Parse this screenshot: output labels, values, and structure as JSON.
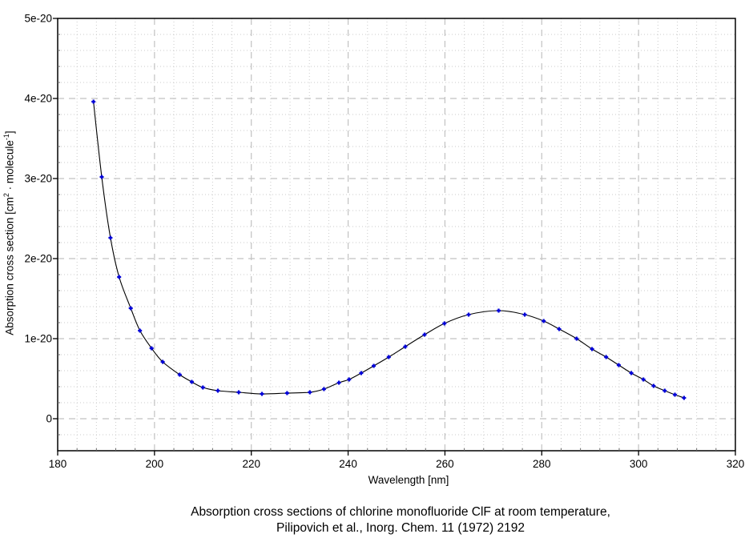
{
  "figure": {
    "caption_line1": "Absorption cross sections of chlorine monofluoride ClF at room temperature,",
    "caption_line2": "Pilipovich et al., Inorg. Chem. 11 (1972) 2192"
  },
  "chart_data": {
    "type": "line",
    "title": "",
    "xlabel": "Wavelength [nm]",
    "ylabel": "Absorption cross section [cm^2 · molecule^-1]",
    "ylabel_parts": {
      "pre": "Absorption cross section [cm",
      "sup1": "2",
      "mid": " · molecule",
      "sup2": "-1",
      "post": "]"
    },
    "xlim": [
      180,
      320
    ],
    "ylim": [
      -4e-21,
      5e-20
    ],
    "grid": true,
    "legend": "none",
    "x_major_ticks": [
      180,
      200,
      220,
      240,
      260,
      280,
      300,
      320
    ],
    "x_tick_labels": [
      "180",
      "200",
      "220",
      "240",
      "260",
      "280",
      "300",
      "320"
    ],
    "x_minor_step": 4,
    "y_major_ticks": [
      0,
      1e-20,
      2e-20,
      3e-20,
      4e-20,
      5e-20
    ],
    "y_tick_labels": [
      "0",
      "1e-20",
      "2e-20",
      "3e-20",
      "4e-20",
      "5e-20"
    ],
    "y_minor_step": 2e-21,
    "x": [
      187.4,
      189.1,
      190.9,
      192.7,
      195.1,
      197.0,
      199.4,
      201.7,
      205.2,
      207.7,
      210.0,
      213.1,
      217.4,
      222.2,
      227.4,
      232.1,
      235.0,
      238.1,
      240.2,
      242.7,
      245.3,
      248.4,
      251.8,
      255.8,
      259.9,
      264.9,
      271.1,
      276.5,
      280.4,
      283.6,
      287.2,
      290.4,
      293.3,
      295.9,
      298.5,
      301.0,
      303.1,
      305.4,
      307.5,
      309.4
    ],
    "y": [
      3.96e-20,
      3.02e-20,
      2.26e-20,
      1.77e-20,
      1.38e-20,
      1.1e-20,
      8.8e-21,
      7.1e-21,
      5.5e-21,
      4.6e-21,
      3.9e-21,
      3.5e-21,
      3.3e-21,
      3.1e-21,
      3.2e-21,
      3.3e-21,
      3.7e-21,
      4.5e-21,
      4.9e-21,
      5.7e-21,
      6.6e-21,
      7.7e-21,
      9e-21,
      1.05e-20,
      1.19e-20,
      1.3e-20,
      1.35e-20,
      1.3e-20,
      1.22e-20,
      1.12e-20,
      1e-20,
      8.7e-21,
      7.7e-21,
      6.7e-21,
      5.7e-21,
      4.9e-21,
      4.1e-21,
      3.5e-21,
      3e-21,
      2.6e-21
    ],
    "colors": {
      "line": "#000000",
      "marker": "#0000d8",
      "grid_major": "#c2c2c2",
      "grid_minor": "#cbcbcb",
      "axis": "#000000",
      "background": "#ffffff",
      "text": "#000000"
    }
  }
}
